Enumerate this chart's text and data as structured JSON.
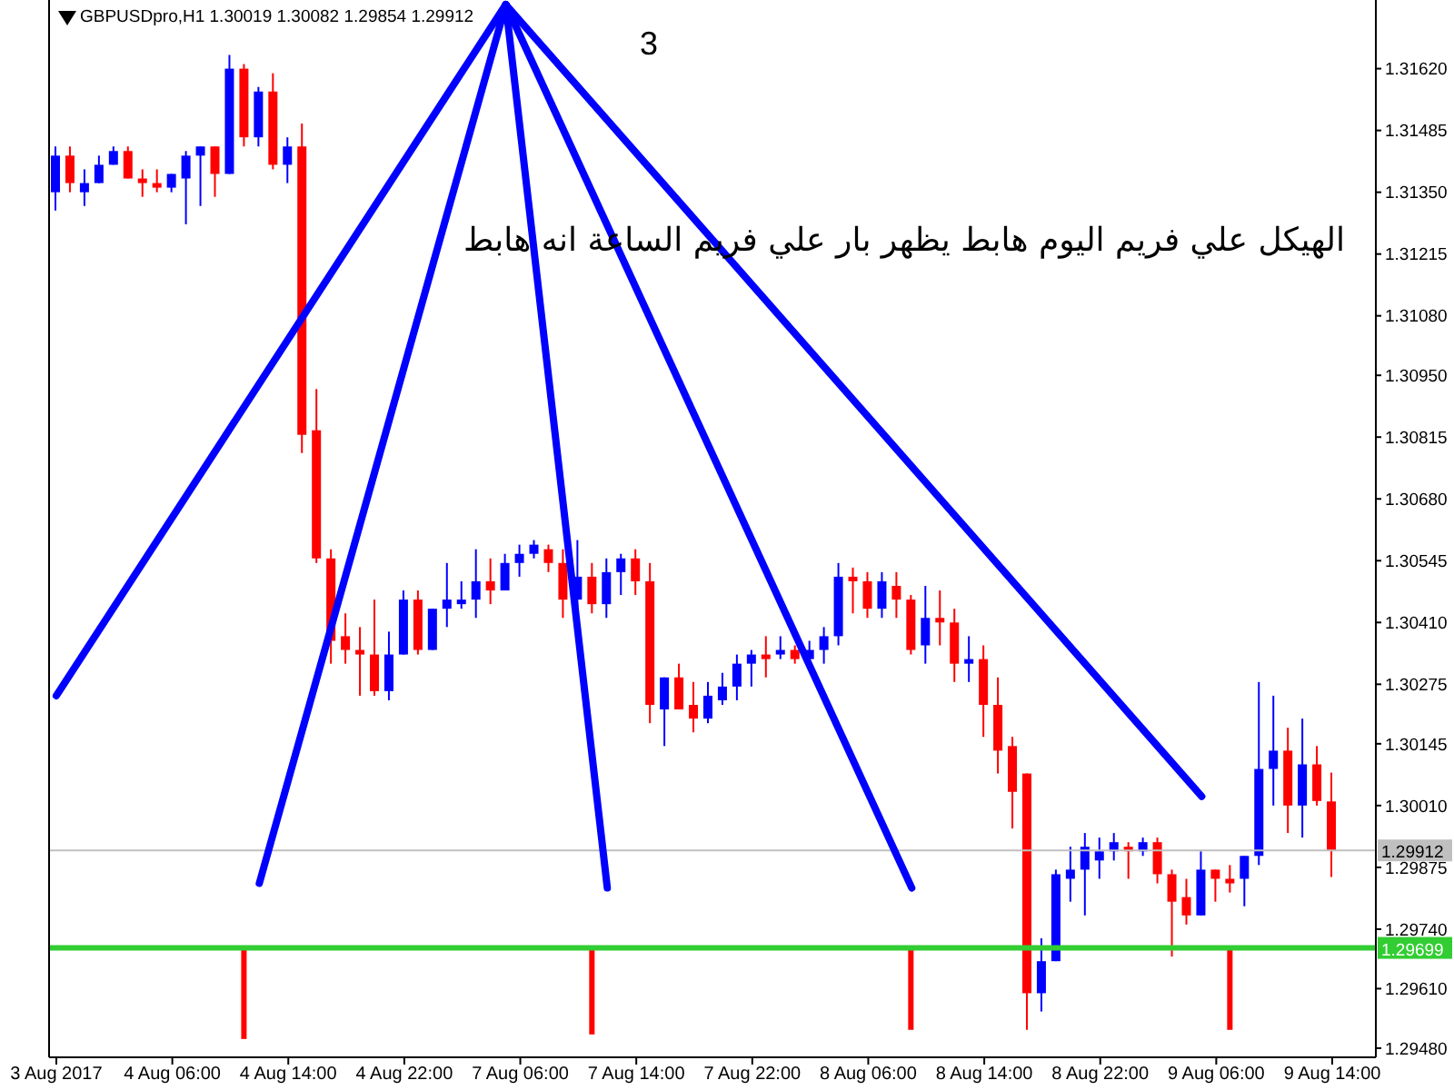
{
  "chart_data": {
    "type": "candlestick",
    "title": "GBPUSDpro,H1 1.30019 1.30082 1.29854 1.29912",
    "annotations": [
      "3",
      "الهيكل علي فريم اليوم هابط يظهر بار علي فريم الساعة انه هابط"
    ],
    "categories": [
      "3 Aug 2017",
      null,
      null,
      null,
      null,
      null,
      null,
      null,
      "4 Aug 06:00",
      null,
      null,
      null,
      null,
      null,
      null,
      null,
      "4 Aug 14:00",
      null,
      null,
      null,
      null,
      null,
      null,
      null,
      "4 Aug 22:00",
      null,
      null,
      null,
      null,
      null,
      null,
      null,
      "7 Aug 06:00",
      null,
      null,
      null,
      null,
      null,
      null,
      null,
      "7 Aug 14:00",
      null,
      null,
      null,
      null,
      null,
      null,
      null,
      "7 Aug 22:00",
      null,
      null,
      null,
      null,
      null,
      null,
      null,
      "8 Aug 06:00",
      null,
      null,
      null,
      null,
      null,
      null,
      null,
      "8 Aug 14:00",
      null,
      null,
      null,
      null,
      null,
      null,
      null,
      "8 Aug 22:00",
      null,
      null,
      null,
      null,
      null,
      null,
      null,
      "9 Aug 06:00",
      null,
      null,
      null,
      null,
      null,
      null,
      null,
      "9 Aug 14:00"
    ],
    "ohlc": [
      [
        1.3135,
        1.3145,
        1.3131,
        1.3143
      ],
      [
        1.3143,
        1.3145,
        1.3135,
        1.3137
      ],
      [
        1.3135,
        1.314,
        1.3132,
        1.3137
      ],
      [
        1.3137,
        1.3143,
        1.3137,
        1.3141
      ],
      [
        1.3141,
        1.3145,
        1.3141,
        1.3144
      ],
      [
        1.3144,
        1.3145,
        1.3138,
        1.3138
      ],
      [
        1.3138,
        1.314,
        1.3134,
        1.3137
      ],
      [
        1.3137,
        1.314,
        1.3135,
        1.3136
      ],
      [
        1.3136,
        1.3139,
        1.3135,
        1.3139
      ],
      [
        1.3138,
        1.3144,
        1.3128,
        1.3143
      ],
      [
        1.3143,
        1.3145,
        1.3132,
        1.3145
      ],
      [
        1.3145,
        1.3145,
        1.3134,
        1.3139
      ],
      [
        1.3139,
        1.3165,
        1.3139,
        1.3162
      ],
      [
        1.3162,
        1.3163,
        1.3145,
        1.3147
      ],
      [
        1.3147,
        1.3158,
        1.3145,
        1.3157
      ],
      [
        1.3157,
        1.3161,
        1.314,
        1.3141
      ],
      [
        1.3141,
        1.3147,
        1.3137,
        1.3145
      ],
      [
        1.3145,
        1.315,
        1.3078,
        1.3082
      ],
      [
        1.3083,
        1.3092,
        1.3054,
        1.3055
      ],
      [
        1.3055,
        1.3057,
        1.3032,
        1.3037
      ],
      [
        1.3038,
        1.3043,
        1.3032,
        1.3035
      ],
      [
        1.3035,
        1.304,
        1.3025,
        1.3034
      ],
      [
        1.3034,
        1.3046,
        1.3025,
        1.3026
      ],
      [
        1.3026,
        1.3039,
        1.3024,
        1.3034
      ],
      [
        1.3034,
        1.3048,
        1.3034,
        1.3046
      ],
      [
        1.3046,
        1.3048,
        1.3034,
        1.3035
      ],
      [
        1.3035,
        1.3044,
        1.3035,
        1.3044
      ],
      [
        1.3044,
        1.3054,
        1.304,
        1.3046
      ],
      [
        1.3045,
        1.305,
        1.3044,
        1.3046
      ],
      [
        1.3046,
        1.3057,
        1.3042,
        1.305
      ],
      [
        1.305,
        1.3055,
        1.3045,
        1.3048
      ],
      [
        1.3048,
        1.3056,
        1.3048,
        1.3054
      ],
      [
        1.3054,
        1.3058,
        1.3051,
        1.3056
      ],
      [
        1.3056,
        1.3059,
        1.3055,
        1.3058
      ],
      [
        1.3057,
        1.3058,
        1.3052,
        1.3054
      ],
      [
        1.3054,
        1.3057,
        1.3042,
        1.3046
      ],
      [
        1.3046,
        1.3059,
        1.3044,
        1.3051
      ],
      [
        1.3051,
        1.3054,
        1.3043,
        1.3045
      ],
      [
        1.3045,
        1.3055,
        1.3042,
        1.3052
      ],
      [
        1.3052,
        1.3056,
        1.3047,
        1.3055
      ],
      [
        1.3055,
        1.3057,
        1.3047,
        1.305
      ],
      [
        1.305,
        1.3054,
        1.3019,
        1.3023
      ],
      [
        1.3022,
        1.3029,
        1.3014,
        1.3029
      ],
      [
        1.3029,
        1.3032,
        1.3022,
        1.3022
      ],
      [
        1.3023,
        1.3028,
        1.3017,
        1.302
      ],
      [
        1.302,
        1.3028,
        1.3019,
        1.3025
      ],
      [
        1.3024,
        1.303,
        1.3023,
        1.3027
      ],
      [
        1.3027,
        1.3034,
        1.3024,
        1.3032
      ],
      [
        1.3032,
        1.3035,
        1.3027,
        1.3034
      ],
      [
        1.3034,
        1.3038,
        1.3029,
        1.3033
      ],
      [
        1.3034,
        1.3038,
        1.3033,
        1.3035
      ],
      [
        1.3035,
        1.3036,
        1.3032,
        1.3033
      ],
      [
        1.3033,
        1.3037,
        1.3032,
        1.3035
      ],
      [
        1.3035,
        1.304,
        1.3032,
        1.3038
      ],
      [
        1.3038,
        1.3054,
        1.3036,
        1.3051
      ],
      [
        1.3051,
        1.3053,
        1.3043,
        1.305
      ],
      [
        1.305,
        1.3052,
        1.3042,
        1.3044
      ],
      [
        1.3044,
        1.3052,
        1.3042,
        1.305
      ],
      [
        1.3049,
        1.3052,
        1.3042,
        1.3046
      ],
      [
        1.3046,
        1.3047,
        1.3034,
        1.3035
      ],
      [
        1.3036,
        1.3049,
        1.3032,
        1.3042
      ],
      [
        1.3042,
        1.3048,
        1.3036,
        1.3041
      ],
      [
        1.3041,
        1.3044,
        1.3028,
        1.3032
      ],
      [
        1.3032,
        1.3038,
        1.3028,
        1.3033
      ],
      [
        1.3033,
        1.3036,
        1.3016,
        1.3023
      ],
      [
        1.3023,
        1.3029,
        1.3008,
        1.3013
      ],
      [
        1.3014,
        1.3016,
        1.2996,
        1.3004
      ],
      [
        1.3008,
        1.3008,
        1.2952,
        1.296
      ],
      [
        1.296,
        1.2972,
        1.2956,
        1.2967
      ],
      [
        1.2967,
        1.2987,
        1.2967,
        1.2986
      ],
      [
        1.2985,
        1.2992,
        1.298,
        1.2987
      ],
      [
        1.2987,
        1.2995,
        1.2977,
        1.2992
      ],
      [
        1.2989,
        1.2994,
        1.2985,
        1.2991
      ],
      [
        1.2991,
        1.2995,
        1.2989,
        1.2993
      ],
      [
        1.2992,
        1.2993,
        1.2985,
        1.2991
      ],
      [
        1.2991,
        1.2994,
        1.299,
        1.2993
      ],
      [
        1.2993,
        1.2994,
        1.2984,
        1.2986
      ],
      [
        1.2986,
        1.2987,
        1.2968,
        1.298
      ],
      [
        1.2981,
        1.2985,
        1.2975,
        1.2977
      ],
      [
        1.2977,
        1.2991,
        1.2977,
        1.2987
      ],
      [
        1.2987,
        1.2987,
        1.298,
        1.2985
      ],
      [
        1.2985,
        1.2988,
        1.2982,
        1.2984
      ],
      [
        1.2985,
        1.299,
        1.2979,
        1.299
      ],
      [
        1.299,
        1.3028,
        1.2988,
        1.3009
      ],
      [
        1.3009,
        1.3025,
        1.3001,
        1.3013
      ],
      [
        1.3013,
        1.3018,
        1.2995,
        1.3001
      ],
      [
        1.3001,
        1.302,
        1.2994,
        1.301
      ],
      [
        1.301,
        1.3014,
        1.3001,
        1.3002
      ],
      [
        1.30019,
        1.30082,
        1.29854,
        1.29912
      ]
    ],
    "colors": [
      "#0000ff",
      "#ff0000",
      "#0000ff",
      "#0000ff",
      "#0000ff",
      "#ff0000",
      "#ff0000",
      "#ff0000",
      "#0000ff",
      "#0000ff",
      "#0000ff",
      "#ff0000",
      "#0000ff",
      "#ff0000",
      "#0000ff",
      "#ff0000",
      "#0000ff",
      "#ff0000",
      "#ff0000",
      "#ff0000",
      "#ff0000",
      "#ff0000",
      "#ff0000",
      "#0000ff",
      "#0000ff",
      "#ff0000",
      "#0000ff",
      "#0000ff",
      "#0000ff",
      "#0000ff",
      "#ff0000",
      "#0000ff",
      "#0000ff",
      "#0000ff",
      "#ff0000",
      "#ff0000",
      "#0000ff",
      "#ff0000",
      "#0000ff",
      "#0000ff",
      "#ff0000",
      "#ff0000",
      "#0000ff",
      "#ff0000",
      "#ff0000",
      "#0000ff",
      "#0000ff",
      "#0000ff",
      "#0000ff",
      "#ff0000",
      "#0000ff",
      "#ff0000",
      "#0000ff",
      "#0000ff",
      "#0000ff",
      "#ff0000",
      "#ff0000",
      "#0000ff",
      "#ff0000",
      "#ff0000",
      "#0000ff",
      "#ff0000",
      "#ff0000",
      "#0000ff",
      "#ff0000",
      "#ff0000",
      "#ff0000",
      "#ff0000",
      "#0000ff",
      "#0000ff",
      "#0000ff",
      "#0000ff",
      "#0000ff",
      "#0000ff",
      "#ff0000",
      "#0000ff",
      "#ff0000",
      "#ff0000",
      "#ff0000",
      "#0000ff",
      "#ff0000",
      "#ff0000",
      "#0000ff",
      "#0000ff",
      "#0000ff",
      "#ff0000",
      "#0000ff",
      "#ff0000",
      "#ff0000"
    ],
    "series": [
      {
        "type": "line",
        "color": "#0000ff",
        "values": [
          1.3025,
          null,
          null,
          null,
          null,
          null,
          null,
          null,
          null,
          null,
          null,
          null,
          null,
          null,
          null,
          null,
          null,
          null,
          null,
          null,
          null,
          null,
          null,
          null,
          null,
          null,
          null,
          null,
          null,
          null,
          null,
          1.3176,
          null,
          null,
          null,
          null,
          null,
          null,
          null,
          null,
          null,
          null,
          null,
          null,
          null,
          null,
          null,
          null,
          null,
          null,
          null,
          null,
          null,
          null,
          null,
          null,
          null,
          null,
          null,
          null,
          null,
          null,
          null,
          null,
          null,
          null,
          null,
          null,
          null,
          null,
          null,
          null,
          null,
          null,
          null,
          null,
          null,
          null,
          null,
          null,
          null,
          null,
          null,
          null,
          null,
          null,
          null,
          null,
          null
        ]
      },
      {
        "type": "line",
        "color": "#0000ff",
        "values": [
          null,
          null,
          null,
          null,
          null,
          null,
          null,
          null,
          null,
          null,
          null,
          null,
          null,
          null,
          1.2984,
          null,
          null,
          null,
          null,
          null,
          null,
          null,
          null,
          null,
          null,
          null,
          null,
          null,
          null,
          null,
          null,
          1.3176,
          null,
          null,
          null,
          null,
          null,
          null,
          null,
          null,
          null,
          null,
          null,
          null,
          null,
          null,
          null,
          null,
          null,
          null,
          null,
          null,
          null,
          null,
          null,
          null,
          null,
          null,
          null,
          null,
          null,
          null,
          null,
          null,
          null,
          null,
          null,
          null,
          null,
          null,
          null,
          null,
          null,
          null,
          null,
          null,
          null,
          null,
          null,
          null,
          null,
          null,
          null,
          null,
          null,
          null,
          null,
          null,
          null
        ]
      },
      {
        "type": "line",
        "color": "#0000ff",
        "values": [
          null,
          null,
          null,
          null,
          null,
          null,
          null,
          null,
          null,
          null,
          null,
          null,
          null,
          null,
          null,
          null,
          null,
          null,
          null,
          null,
          null,
          null,
          null,
          null,
          null,
          null,
          null,
          null,
          null,
          null,
          null,
          1.3176,
          null,
          null,
          null,
          null,
          null,
          null,
          1.2983,
          null,
          null,
          null,
          null,
          null,
          null,
          null,
          null,
          null,
          null,
          null,
          null,
          null,
          null,
          null,
          null,
          null,
          null,
          null,
          null,
          null,
          null,
          null,
          null,
          null,
          null,
          null,
          null,
          null,
          null,
          null,
          null,
          null,
          null,
          null,
          null,
          null,
          null,
          null,
          null,
          null,
          null,
          null,
          null,
          null,
          null,
          null,
          null,
          null,
          null
        ]
      },
      {
        "type": "line",
        "color": "#0000ff",
        "values": [
          null,
          null,
          null,
          null,
          null,
          null,
          null,
          null,
          null,
          null,
          null,
          null,
          null,
          null,
          null,
          null,
          null,
          null,
          null,
          null,
          null,
          null,
          null,
          null,
          null,
          null,
          null,
          null,
          null,
          null,
          null,
          1.3176,
          null,
          null,
          null,
          null,
          null,
          null,
          null,
          null,
          null,
          null,
          null,
          null,
          null,
          null,
          null,
          null,
          null,
          null,
          null,
          null,
          null,
          null,
          null,
          null,
          null,
          null,
          null,
          1.2983,
          null,
          null,
          null,
          null,
          null,
          null,
          null,
          null,
          null,
          null,
          null,
          null,
          null,
          null,
          null,
          null,
          null,
          null,
          null,
          null,
          null,
          null,
          null,
          null,
          null,
          null,
          null,
          null,
          null
        ]
      },
      {
        "type": "line",
        "color": "#0000ff",
        "values": [
          null,
          null,
          null,
          null,
          null,
          null,
          null,
          null,
          null,
          null,
          null,
          null,
          null,
          null,
          null,
          null,
          null,
          null,
          null,
          null,
          null,
          null,
          null,
          null,
          null,
          null,
          null,
          null,
          null,
          null,
          null,
          1.3176,
          null,
          null,
          null,
          null,
          null,
          null,
          null,
          null,
          null,
          null,
          null,
          null,
          null,
          null,
          null,
          null,
          null,
          null,
          null,
          null,
          null,
          null,
          null,
          null,
          null,
          null,
          null,
          null,
          null,
          null,
          null,
          null,
          null,
          null,
          null,
          null,
          null,
          null,
          null,
          null,
          null,
          null,
          null,
          null,
          null,
          null,
          null,
          1.3003,
          null,
          null,
          null,
          null,
          null,
          null,
          null,
          null,
          null
        ]
      },
      {
        "type": "bar",
        "color": "#ff0000",
        "values": [
          null,
          null,
          null,
          null,
          null,
          null,
          null,
          null,
          null,
          null,
          null,
          null,
          null,
          0.002,
          null,
          null,
          null,
          null,
          null,
          null,
          null,
          null,
          null,
          null,
          null,
          null,
          null,
          null,
          null,
          null,
          null,
          null,
          null,
          null,
          null,
          null,
          null,
          0.0019,
          null,
          null,
          null,
          null,
          null,
          null,
          null,
          null,
          null,
          null,
          null,
          null,
          null,
          null,
          null,
          null,
          null,
          null,
          null,
          null,
          null,
          0.0018,
          null,
          null,
          null,
          null,
          null,
          null,
          null,
          null,
          null,
          null,
          null,
          null,
          null,
          null,
          null,
          null,
          null,
          null,
          null,
          null,
          null,
          0.0018,
          null,
          null,
          null,
          null,
          null,
          null,
          null
        ],
        "base": [
          null,
          null,
          null,
          null,
          null,
          null,
          null,
          null,
          null,
          null,
          null,
          null,
          null,
          1.295,
          null,
          null,
          null,
          null,
          null,
          null,
          null,
          null,
          null,
          null,
          null,
          null,
          null,
          null,
          null,
          null,
          null,
          null,
          null,
          null,
          null,
          null,
          null,
          1.2951,
          null,
          null,
          null,
          null,
          null,
          null,
          null,
          null,
          null,
          null,
          null,
          null,
          null,
          null,
          null,
          null,
          null,
          null,
          null,
          null,
          null,
          1.2952,
          null,
          null,
          null,
          null,
          null,
          null,
          null,
          null,
          null,
          null,
          null,
          null,
          null,
          null,
          null,
          null,
          null,
          null,
          null,
          null,
          null,
          1.2952,
          null,
          null,
          null,
          null,
          null,
          null,
          null
        ]
      }
    ],
    "ref_lines": [
      {
        "axis": "y",
        "value": 1.29912,
        "label": "1.29912",
        "color": "#c0c0c0"
      },
      {
        "axis": "y",
        "value": 1.29699,
        "label": "1.29699",
        "color": "#32cd32"
      }
    ],
    "ylim": [
      1.2946,
      1.3177
    ],
    "yticks": [
      {
        "value": 1.3162,
        "label": "1.31620"
      },
      {
        "value": 1.31485,
        "label": "1.31485"
      },
      {
        "value": 1.3135,
        "label": "1.31350"
      },
      {
        "value": 1.31215,
        "label": "1.31215"
      },
      {
        "value": 1.3108,
        "label": "1.31080"
      },
      {
        "value": 1.3095,
        "label": "1.30950"
      },
      {
        "value": 1.30815,
        "label": "1.30815"
      },
      {
        "value": 1.3068,
        "label": "1.30680"
      },
      {
        "value": 1.30545,
        "label": "1.30545"
      },
      {
        "value": 1.3041,
        "label": "1.30410"
      },
      {
        "value": 1.30275,
        "label": "1.30275"
      },
      {
        "value": 1.30145,
        "label": "1.30145"
      },
      {
        "value": 1.3001,
        "label": "1.30010"
      },
      {
        "value": 1.29875,
        "label": "1.29875"
      },
      {
        "value": 1.2974,
        "label": "1.29740"
      },
      {
        "value": 1.2961,
        "label": "1.29610"
      },
      {
        "value": 1.2948,
        "label": "1.29480"
      }
    ],
    "marker": "none"
  }
}
